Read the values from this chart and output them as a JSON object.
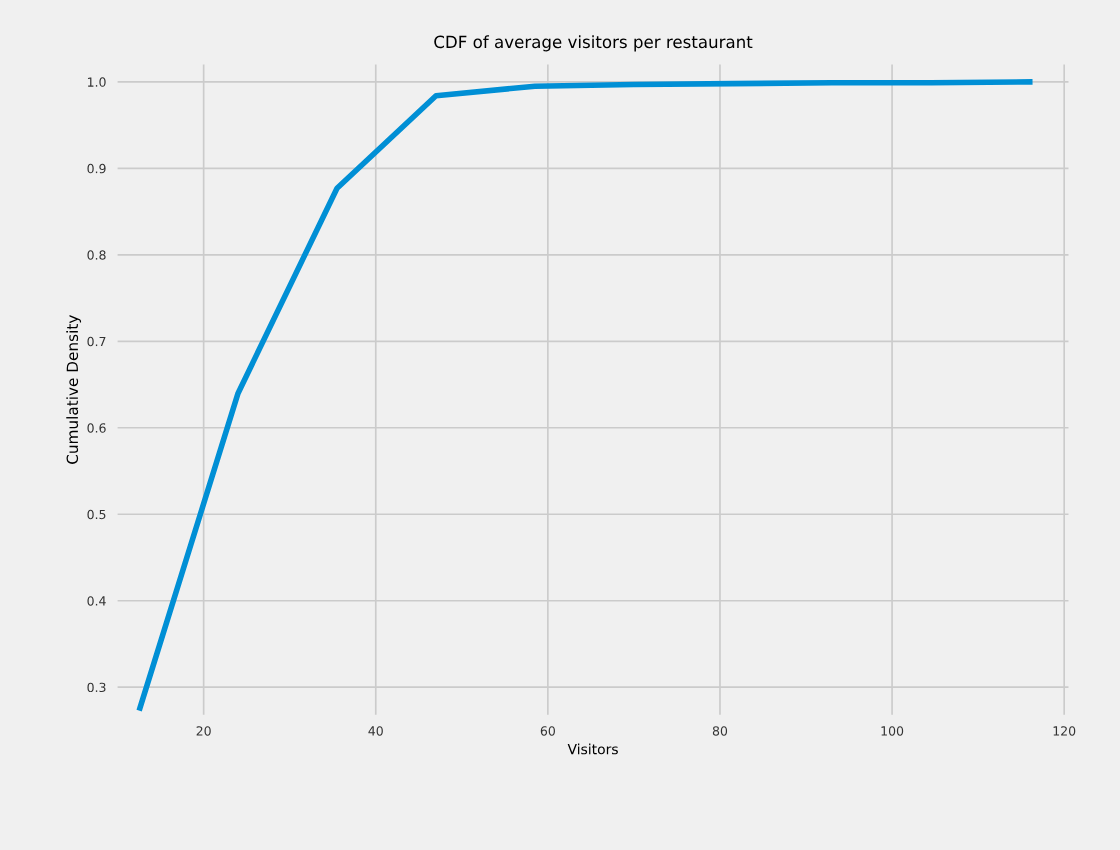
{
  "chart_data": {
    "type": "line",
    "title": "CDF of average visitors per restaurant",
    "xlabel": "Visitors",
    "ylabel": "Cumulative Density",
    "x": [
      12.6,
      24,
      35.5,
      47,
      58.5,
      70,
      81.5,
      93,
      104.5,
      116
    ],
    "series": [
      {
        "color": "#008fd5",
        "values": [
          0.276,
          0.64,
          0.877,
          0.984,
          0.995,
          0.997,
          0.998,
          0.999,
          0.999,
          1.0
        ]
      }
    ],
    "xlim": [
      10,
      120.5
    ],
    "xticks": [
      20,
      40,
      60,
      80,
      100,
      120
    ],
    "ylim": [
      0.268,
      1.02
    ],
    "yticks": [
      0.3,
      0.4,
      0.5,
      0.6,
      0.7,
      0.8,
      0.9,
      {
        "value": 1.0,
        "label": "1.0"
      }
    ],
    "grid": true,
    "marker": "none",
    "line_style": "solid"
  }
}
